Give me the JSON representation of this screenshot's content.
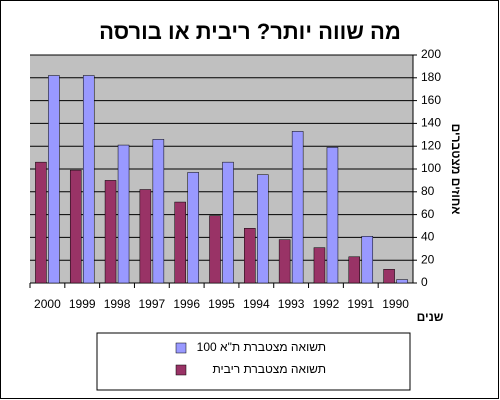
{
  "chart_data": {
    "type": "bar",
    "title": "מה שווה יותר? ריבית או בורסה",
    "y_label": "אחוזים מצטברים",
    "x_label": "שנים",
    "categories": [
      "2000",
      "1999",
      "1998",
      "1997",
      "1996",
      "1995",
      "1994",
      "1993",
      "1992",
      "1991",
      "1990"
    ],
    "series": [
      {
        "name": "תשואה מצטברת ת\"א 100",
        "color": "#9999ff",
        "values": [
          182,
          182,
          121,
          126,
          97,
          106,
          95,
          133,
          119,
          41,
          3
        ]
      },
      {
        "name": "תשואה מצטברת ריבית",
        "color": "#993366",
        "values": [
          106,
          99,
          90,
          82,
          71,
          59,
          48,
          38,
          31,
          23,
          12
        ]
      }
    ],
    "ylim": [
      0,
      200
    ],
    "yticks": [
      0,
      20,
      40,
      60,
      80,
      100,
      120,
      140,
      160,
      180,
      200
    ],
    "grid": true
  }
}
